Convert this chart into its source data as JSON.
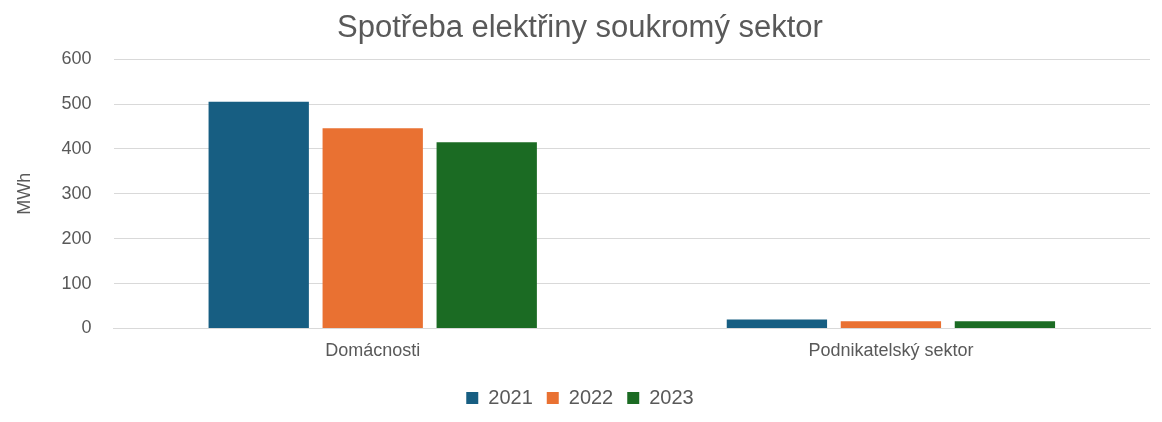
{
  "chart_data": {
    "type": "bar",
    "title": "Spotřeba elektřiny soukromý sektor",
    "ylabel": "MWh",
    "categories": [
      "Domácnosti",
      "Podnikatelský sektor"
    ],
    "series": [
      {
        "name": "2021",
        "color": "#175e82",
        "values": [
          505,
          20
        ]
      },
      {
        "name": "2022",
        "color": "#e97132",
        "values": [
          446,
          16
        ]
      },
      {
        "name": "2023",
        "color": "#1b6b23",
        "values": [
          415,
          16
        ]
      }
    ],
    "ylim": [
      0,
      600
    ],
    "yticks": [
      0,
      100,
      200,
      300,
      400,
      500,
      600
    ],
    "grid": "y",
    "legend": "bottom"
  }
}
